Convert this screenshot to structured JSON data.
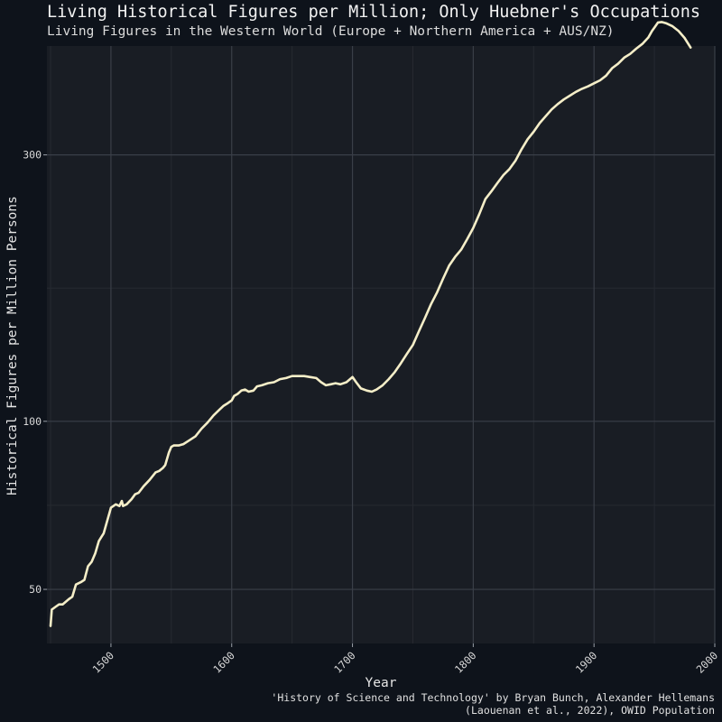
{
  "chart_data": {
    "type": "line",
    "title": "Living Historical Figures per Million; Only Huebner's Occupations",
    "subtitle": "Living Figures in the Western World (Europe + Northern America + AUS/NZ)",
    "xlabel": "Year",
    "ylabel": "Historical Figures per Million Persons",
    "caption": [
      "'History of Science and Technology' by Bryan Bunch, Alexander Hellemans",
      "(Laouenan et al., 2022), OWID Population"
    ],
    "x_ticks": [
      1500,
      1600,
      1700,
      1800,
      1900,
      2000
    ],
    "y_ticks": [
      50,
      100,
      300
    ],
    "y_scale": "log10",
    "xlim": [
      1447,
      2000
    ],
    "ylim": [
      40,
      470
    ],
    "grid": true,
    "colors": {
      "line": "#f5eec8",
      "panel": "#191d24",
      "background": "#0e131b",
      "grid": "#3a3f48"
    },
    "series": [
      {
        "x": [
          1450,
          1451,
          1454,
          1457,
          1460,
          1465,
          1468,
          1471,
          1475,
          1478,
          1481,
          1484,
          1487,
          1490,
          1492,
          1494,
          1500,
          1504,
          1507,
          1509,
          1510,
          1513,
          1517,
          1520,
          1523,
          1527,
          1532,
          1537,
          1540,
          1543,
          1545,
          1548,
          1550,
          1552,
          1556,
          1560,
          1565,
          1570,
          1575,
          1580,
          1585,
          1590,
          1593,
          1596,
          1600,
          1602,
          1605,
          1608,
          1611,
          1614,
          1618,
          1621,
          1625,
          1630,
          1635,
          1640,
          1645,
          1650,
          1655,
          1660,
          1665,
          1670,
          1674,
          1678,
          1682,
          1686,
          1690,
          1695,
          1700,
          1703,
          1707,
          1712,
          1716,
          1720,
          1725,
          1730,
          1735,
          1740,
          1745,
          1750,
          1755,
          1760,
          1765,
          1770,
          1775,
          1780,
          1785,
          1790,
          1795,
          1800,
          1805,
          1810,
          1815,
          1820,
          1825,
          1830,
          1835,
          1840,
          1845,
          1850,
          1855,
          1860,
          1865,
          1870,
          1875,
          1880,
          1885,
          1890,
          1895,
          1900,
          1905,
          1910,
          1915,
          1920,
          1925,
          1930,
          1935,
          1940,
          1945,
          1948,
          1950,
          1953,
          1956,
          1960,
          1965,
          1970,
          1975,
          1980
        ],
        "y": [
          43,
          46,
          46.5,
          47,
          47,
          48,
          48.5,
          51,
          51.5,
          52,
          55,
          56,
          58,
          61,
          62,
          63,
          70,
          71,
          70.5,
          72,
          70.5,
          71,
          72.5,
          74,
          74.5,
          76.5,
          78.5,
          81,
          81.5,
          82.5,
          83.5,
          88,
          90,
          90.5,
          90.5,
          91,
          92.5,
          94,
          97,
          99.5,
          102.5,
          105,
          106.5,
          107.5,
          109,
          111,
          112,
          113.5,
          114,
          113,
          113.5,
          115.5,
          116,
          117,
          117.5,
          119,
          119.5,
          120.5,
          120.5,
          120.5,
          120,
          119.5,
          117.5,
          116,
          116.5,
          117,
          116.5,
          117.5,
          120,
          117.5,
          114.5,
          113.5,
          113,
          114,
          116,
          119,
          122.5,
          127,
          132,
          137,
          145,
          153,
          162,
          170,
          180,
          190,
          197,
          203,
          212,
          222,
          235,
          250,
          258,
          267,
          276,
          283,
          293,
          307,
          320,
          330,
          342,
          352,
          362,
          370,
          377,
          383,
          389,
          394,
          398,
          403,
          408,
          416,
          429,
          437,
          448,
          455,
          465,
          474,
          487,
          500,
          507,
          518,
          519,
          516,
          510,
          500,
          486,
          467
        ]
      }
    ]
  }
}
